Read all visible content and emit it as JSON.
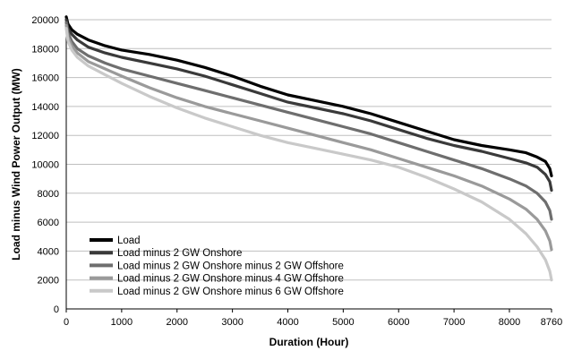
{
  "chart_data": {
    "type": "line",
    "title": "",
    "xlabel": "Duration (Hour)",
    "ylabel": "Load minus Wind Power Output (MW)",
    "xlim": [
      0,
      8760
    ],
    "ylim": [
      0,
      20000
    ],
    "x_ticks": [
      0,
      1000,
      2000,
      3000,
      4000,
      5000,
      6000,
      7000,
      8000,
      8760
    ],
    "y_ticks": [
      0,
      2000,
      4000,
      6000,
      8000,
      10000,
      12000,
      14000,
      16000,
      18000,
      20000
    ],
    "grid": "horizontal",
    "legend_position": "bottom-left",
    "series": [
      {
        "name": "Load",
        "color": "#000000",
        "x": [
          0,
          30,
          100,
          200,
          400,
          700,
          1000,
          1500,
          2000,
          2500,
          3000,
          3500,
          4000,
          4500,
          5000,
          5500,
          6000,
          6500,
          7000,
          7500,
          8000,
          8300,
          8500,
          8650,
          8730,
          8760
        ],
        "values": [
          20200,
          19700,
          19300,
          19000,
          18600,
          18200,
          17900,
          17600,
          17200,
          16700,
          16100,
          15400,
          14800,
          14400,
          14000,
          13500,
          12900,
          12300,
          11700,
          11300,
          11000,
          10800,
          10500,
          10200,
          9700,
          9200
        ]
      },
      {
        "name": "Load minus 2 GW Onshore",
        "color": "#3a3a3a",
        "x": [
          0,
          30,
          100,
          200,
          400,
          700,
          1000,
          1500,
          2000,
          2500,
          3000,
          3500,
          4000,
          4500,
          5000,
          5500,
          6000,
          6500,
          7000,
          7500,
          8000,
          8300,
          8500,
          8650,
          8730,
          8760
        ],
        "values": [
          20000,
          19400,
          19000,
          18600,
          18100,
          17700,
          17400,
          17000,
          16600,
          16100,
          15500,
          14900,
          14300,
          13900,
          13500,
          13000,
          12400,
          11800,
          11300,
          10900,
          10400,
          10100,
          9800,
          9300,
          8800,
          8200
        ]
      },
      {
        "name": "Load minus 2 GW Onshore minus 2 GW Offshore",
        "color": "#6e6e6e",
        "x": [
          0,
          30,
          100,
          200,
          400,
          700,
          1000,
          1500,
          2000,
          2500,
          3000,
          3500,
          4000,
          4500,
          5000,
          5500,
          6000,
          6500,
          7000,
          7500,
          8000,
          8300,
          8500,
          8650,
          8730,
          8760
        ],
        "values": [
          19800,
          19100,
          18500,
          18000,
          17500,
          17000,
          16600,
          16100,
          15600,
          15100,
          14600,
          14100,
          13600,
          13100,
          12600,
          12100,
          11500,
          10900,
          10300,
          9700,
          9000,
          8500,
          8000,
          7400,
          6800,
          6200
        ]
      },
      {
        "name": "Load minus 2 GW Onshore minus 4 GW Offshore",
        "color": "#9a9a9a",
        "x": [
          0,
          30,
          100,
          200,
          400,
          700,
          1000,
          1500,
          2000,
          2500,
          3000,
          3500,
          4000,
          4500,
          5000,
          5500,
          6000,
          6500,
          7000,
          7500,
          8000,
          8300,
          8500,
          8650,
          8730,
          8760
        ],
        "values": [
          19600,
          18800,
          18200,
          17700,
          17100,
          16600,
          16100,
          15300,
          14600,
          14000,
          13500,
          13000,
          12500,
          12000,
          11500,
          11000,
          10400,
          9800,
          9200,
          8500,
          7600,
          6900,
          6200,
          5400,
          4700,
          4100
        ]
      },
      {
        "name": "Load minus 2 GW Onshore minus 6 GW Offshore",
        "color": "#c9c9c9",
        "x": [
          0,
          30,
          100,
          200,
          400,
          700,
          1000,
          1500,
          2000,
          2500,
          3000,
          3500,
          4000,
          4500,
          5000,
          5500,
          6000,
          6500,
          7000,
          7500,
          8000,
          8300,
          8500,
          8650,
          8730,
          8760
        ],
        "values": [
          19400,
          18500,
          17900,
          17400,
          16800,
          16200,
          15600,
          14700,
          13900,
          13200,
          12600,
          12000,
          11500,
          11100,
          10700,
          10300,
          9800,
          9100,
          8300,
          7400,
          6200,
          5200,
          4300,
          3400,
          2600,
          2000
        ]
      }
    ]
  }
}
